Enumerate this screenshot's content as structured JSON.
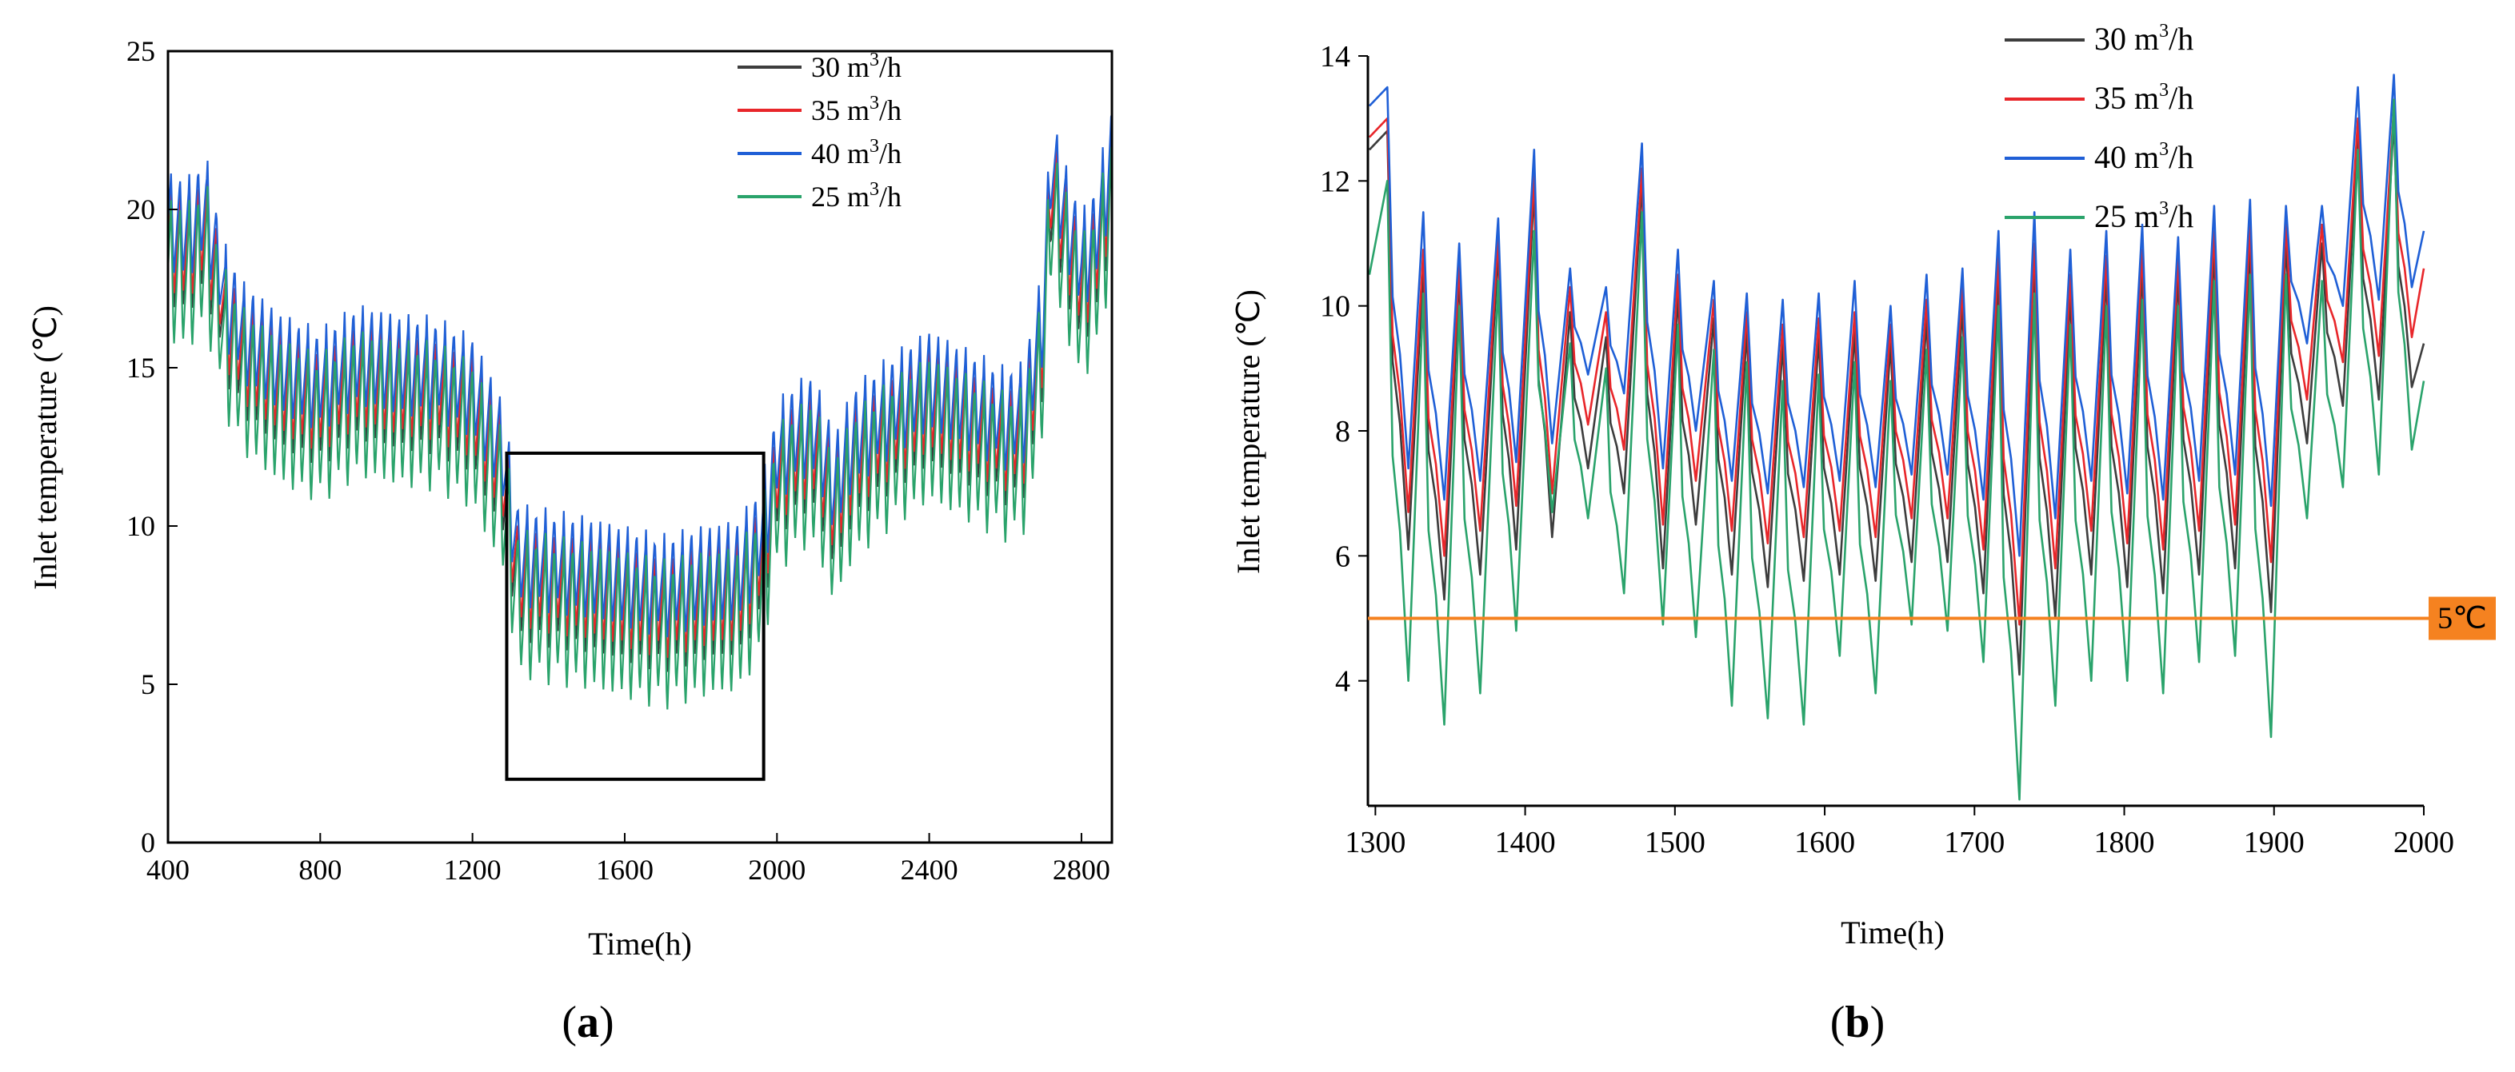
{
  "colors": {
    "s30": "#3d3d3d",
    "s35": "#e8262a",
    "s40": "#1f5fd6",
    "s25": "#2aa36b",
    "threshold": "#f58220"
  },
  "panel_a_label": {
    "pre": "(",
    "letter": "a",
    "post": ")"
  },
  "panel_b_label": {
    "pre": "(",
    "letter": "b",
    "post": ")"
  },
  "threshold_label": "5℃",
  "chart_data": [
    {
      "id": "a",
      "type": "line",
      "xlabel": "Time(h)",
      "ylabel": "Inlet temperature (℃)",
      "xlim": [
        400,
        2880
      ],
      "ylim": [
        0,
        25
      ],
      "xticks": [
        400,
        800,
        1200,
        1600,
        2000,
        2400,
        2800
      ],
      "yticks": [
        0,
        5,
        10,
        15,
        20,
        25
      ],
      "zoom_box": {
        "x": [
          1290,
          1965
        ],
        "y": [
          2,
          12.3
        ]
      },
      "legend": [
        {
          "key": "s30",
          "pre": "30 m",
          "sup": "3",
          "post": "/h"
        },
        {
          "key": "s35",
          "pre": "35 m",
          "sup": "3",
          "post": "/h"
        },
        {
          "key": "s40",
          "pre": "40 m",
          "sup": "3",
          "post": "/h"
        },
        {
          "key": "s25",
          "pre": "25 m",
          "sup": "3",
          "post": "/h"
        }
      ],
      "baseline_trend": {
        "x": [
          400,
          450,
          500,
          550,
          600,
          700,
          800,
          900,
          1000,
          1100,
          1200,
          1280,
          1320,
          1400,
          1500,
          1600,
          1700,
          1800,
          1900,
          1960,
          2000,
          2050,
          2100,
          2150,
          2200,
          2300,
          2400,
          2500,
          2600,
          2650,
          2700,
          2720,
          2760,
          2800,
          2840,
          2880
        ],
        "y": [
          18.8,
          18.6,
          19.3,
          16.5,
          15.3,
          14.3,
          13.8,
          14.6,
          14.3,
          14.2,
          13.6,
          11.6,
          8.3,
          8.1,
          7.9,
          7.6,
          7.3,
          7.6,
          7.8,
          9.0,
          11.5,
          12.2,
          12.4,
          10.5,
          12.0,
          13.0,
          13.8,
          13.2,
          12.6,
          12.8,
          16.0,
          20.8,
          19.0,
          17.5,
          18.5,
          21.0
        ]
      },
      "series": [
        {
          "name": "30 m3/h",
          "key": "s30",
          "offset": 0.0,
          "amp_scale": 1.0
        },
        {
          "name": "35 m3/h",
          "key": "s35",
          "offset": 0.35,
          "amp_scale": 0.95
        },
        {
          "name": "40 m3/h",
          "key": "s40",
          "offset": 0.9,
          "amp_scale": 0.9
        },
        {
          "name": "25 m3/h",
          "key": "s25",
          "offset": -0.6,
          "amp_scale": 1.3
        }
      ],
      "oscillation": {
        "period_h": 24,
        "amplitude": 2.2
      }
    },
    {
      "id": "b",
      "type": "line",
      "xlabel": "Time(h)",
      "ylabel": "Inlet temperature (℃)",
      "xlim": [
        1295,
        2000
      ],
      "ylim": [
        2,
        14
      ],
      "xticks": [
        1300,
        1400,
        1500,
        1600,
        1700,
        1800,
        1900,
        2000
      ],
      "yticks": [
        4,
        6,
        8,
        10,
        12,
        14
      ],
      "threshold": 5,
      "legend": [
        {
          "key": "s30",
          "pre": "30 m",
          "sup": "3",
          "post": "/h"
        },
        {
          "key": "s35",
          "pre": "35 m",
          "sup": "3",
          "post": "/h"
        },
        {
          "key": "s40",
          "pre": "40 m",
          "sup": "3",
          "post": "/h"
        },
        {
          "key": "s25",
          "pre": "25 m",
          "sup": "3",
          "post": "/h"
        }
      ],
      "series": [
        {
          "name": "30 m3/h",
          "key": "s30",
          "peaks_x": [
            1296,
            1308,
            1332,
            1356,
            1382,
            1406,
            1430,
            1454,
            1478,
            1502,
            1526,
            1548,
            1572,
            1596,
            1620,
            1644,
            1668,
            1692,
            1716,
            1740,
            1764,
            1788,
            1812,
            1836,
            1860,
            1884,
            1908,
            1932,
            1956,
            1980,
            2000
          ],
          "peaks_y": [
            12.5,
            12.8,
            10.6,
            10.5,
            10.9,
            11.9,
            9.9,
            9.5,
            12.0,
            10.2,
            9.8,
            9.6,
            9.4,
            9.5,
            9.6,
            9.4,
            9.8,
            10.0,
            10.5,
            10.7,
            10.2,
            10.5,
            10.6,
            10.5,
            10.9,
            11.0,
            11.0,
            11.0,
            12.8,
            13.0,
            9.4
          ],
          "troughs_x": [
            1322,
            1346,
            1370,
            1394,
            1418,
            1442,
            1466,
            1492,
            1514,
            1538,
            1562,
            1586,
            1610,
            1634,
            1658,
            1682,
            1706,
            1730,
            1754,
            1778,
            1802,
            1826,
            1850,
            1874,
            1898,
            1922,
            1946,
            1970,
            1992
          ],
          "troughs_y": [
            6.1,
            5.3,
            5.7,
            6.1,
            6.3,
            7.4,
            7.0,
            5.8,
            6.5,
            5.7,
            5.5,
            5.6,
            5.7,
            5.6,
            5.9,
            5.9,
            5.4,
            4.1,
            5.0,
            5.7,
            5.5,
            5.4,
            5.7,
            5.8,
            5.1,
            7.8,
            8.4,
            8.5,
            8.7
          ]
        },
        {
          "name": "35 m3/h",
          "key": "s35",
          "peaks_x": [
            1296,
            1308,
            1332,
            1356,
            1382,
            1406,
            1430,
            1454,
            1478,
            1502,
            1526,
            1548,
            1572,
            1596,
            1620,
            1644,
            1668,
            1692,
            1716,
            1740,
            1764,
            1788,
            1812,
            1836,
            1860,
            1884,
            1908,
            1932,
            1956,
            1980,
            2000
          ],
          "peaks_y": [
            12.7,
            13.0,
            10.9,
            10.7,
            11.1,
            12.1,
            10.3,
            9.9,
            12.2,
            10.5,
            10.1,
            9.9,
            9.7,
            9.8,
            9.9,
            9.7,
            10.1,
            10.3,
            10.8,
            11.0,
            10.5,
            10.8,
            10.9,
            10.8,
            11.2,
            11.3,
            11.3,
            11.3,
            13.0,
            13.2,
            10.6
          ],
          "troughs_x": [
            1322,
            1346,
            1370,
            1394,
            1418,
            1442,
            1466,
            1492,
            1514,
            1538,
            1562,
            1586,
            1610,
            1634,
            1658,
            1682,
            1706,
            1730,
            1754,
            1778,
            1802,
            1826,
            1850,
            1874,
            1898,
            1922,
            1946,
            1970,
            1992
          ],
          "troughs_y": [
            6.7,
            6.0,
            6.4,
            6.8,
            7.0,
            8.1,
            7.7,
            6.5,
            7.2,
            6.4,
            6.2,
            6.3,
            6.4,
            6.3,
            6.6,
            6.6,
            6.1,
            4.9,
            5.8,
            6.4,
            6.2,
            6.1,
            6.4,
            6.5,
            5.9,
            8.5,
            9.1,
            9.2,
            9.5
          ]
        },
        {
          "name": "40 m3/h",
          "key": "s40",
          "peaks_x": [
            1296,
            1308,
            1332,
            1356,
            1382,
            1406,
            1430,
            1454,
            1478,
            1502,
            1526,
            1548,
            1572,
            1596,
            1620,
            1644,
            1668,
            1692,
            1716,
            1740,
            1764,
            1788,
            1812,
            1836,
            1860,
            1884,
            1908,
            1932,
            1956,
            1980,
            2000
          ],
          "peaks_y": [
            13.2,
            13.5,
            11.5,
            11.0,
            11.4,
            12.5,
            10.6,
            10.3,
            12.6,
            10.9,
            10.4,
            10.2,
            10.1,
            10.2,
            10.4,
            10.0,
            10.5,
            10.6,
            11.2,
            11.5,
            10.9,
            11.2,
            11.3,
            11.1,
            11.6,
            11.7,
            11.6,
            11.6,
            13.5,
            13.7,
            11.2
          ],
          "troughs_x": [
            1322,
            1346,
            1370,
            1394,
            1418,
            1442,
            1466,
            1492,
            1514,
            1538,
            1562,
            1586,
            1610,
            1634,
            1658,
            1682,
            1706,
            1730,
            1754,
            1778,
            1802,
            1826,
            1850,
            1874,
            1898,
            1922,
            1946,
            1970,
            1992
          ],
          "troughs_y": [
            7.4,
            6.9,
            7.2,
            7.5,
            7.8,
            8.9,
            8.6,
            7.4,
            8.0,
            7.2,
            7.0,
            7.1,
            7.2,
            7.1,
            7.3,
            7.3,
            6.9,
            6.0,
            6.6,
            7.2,
            7.0,
            6.9,
            7.2,
            7.3,
            6.8,
            9.4,
            10.0,
            10.1,
            10.3
          ]
        },
        {
          "name": "25 m3/h",
          "key": "s25",
          "peaks_x": [
            1296,
            1308,
            1332,
            1356,
            1382,
            1406,
            1430,
            1454,
            1478,
            1502,
            1526,
            1548,
            1572,
            1596,
            1620,
            1644,
            1668,
            1692,
            1716,
            1740,
            1764,
            1788,
            1812,
            1836,
            1860,
            1884,
            1908,
            1932,
            1956,
            1980,
            2000
          ],
          "peaks_y": [
            10.5,
            12.0,
            10.2,
            10.0,
            10.4,
            11.2,
            9.4,
            9.0,
            11.5,
            9.7,
            9.3,
            9.1,
            8.8,
            8.9,
            9.1,
            8.8,
            9.3,
            9.5,
            10.0,
            10.2,
            9.7,
            10.0,
            10.1,
            10.0,
            10.4,
            10.5,
            10.5,
            10.4,
            12.5,
            13.3,
            8.8
          ],
          "troughs_x": [
            1322,
            1346,
            1370,
            1394,
            1418,
            1442,
            1466,
            1492,
            1514,
            1538,
            1562,
            1586,
            1610,
            1634,
            1658,
            1682,
            1706,
            1730,
            1754,
            1778,
            1802,
            1826,
            1850,
            1874,
            1898,
            1922,
            1946,
            1970,
            1992
          ],
          "troughs_y": [
            4.0,
            3.3,
            3.8,
            4.8,
            6.7,
            6.6,
            5.4,
            4.9,
            4.7,
            3.6,
            3.4,
            3.3,
            4.4,
            3.8,
            4.9,
            4.8,
            4.3,
            2.1,
            3.6,
            4.0,
            4.0,
            3.8,
            4.3,
            4.4,
            3.1,
            6.6,
            7.1,
            7.3,
            7.7
          ]
        }
      ]
    }
  ]
}
